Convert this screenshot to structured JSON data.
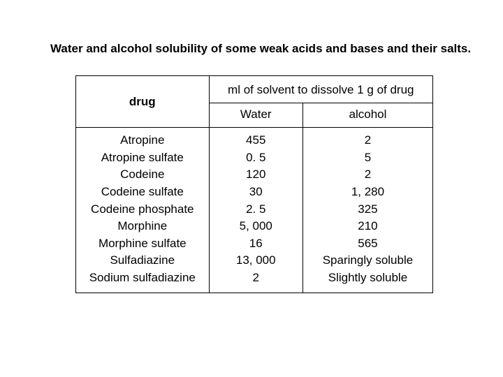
{
  "title": "Water and alcohol solubility of some weak acids and bases and their salts.",
  "table": {
    "spanHeader": "ml of solvent to dissolve 1 g of drug",
    "colHeaders": {
      "drug": "drug",
      "water": "Water",
      "alcohol": "alcohol"
    },
    "rows": [
      {
        "drug": "Atropine",
        "water": "455",
        "alcohol": "2"
      },
      {
        "drug": "Atropine sulfate",
        "water": "0. 5",
        "alcohol": "5"
      },
      {
        "drug": "Codeine",
        "water": "120",
        "alcohol": "2"
      },
      {
        "drug": "Codeine sulfate",
        "water": "30",
        "alcohol": "1, 280"
      },
      {
        "drug": "Codeine phosphate",
        "water": "2. 5",
        "alcohol": "325"
      },
      {
        "drug": "Morphine",
        "water": "5, 000",
        "alcohol": "210"
      },
      {
        "drug": "Morphine sulfate",
        "water": "16",
        "alcohol": "565"
      },
      {
        "drug": "Sulfadiazine",
        "water": "13, 000",
        "alcohol": "Sparingly soluble"
      },
      {
        "drug": "Sodium sulfadiazine",
        "water": "2",
        "alcohol": "Slightly soluble"
      }
    ]
  },
  "style": {
    "background": "#ffffff",
    "textColor": "#000000",
    "borderColor": "#000000",
    "fontFamily": "Arial",
    "titleFontSize": 17,
    "cellFontSize": 17,
    "borderWidth": 1.5,
    "lineHeight": 1.45,
    "tableWidth": 512,
    "colWidths": {
      "drug": 200,
      "water": 128,
      "alcohol": 184
    }
  }
}
